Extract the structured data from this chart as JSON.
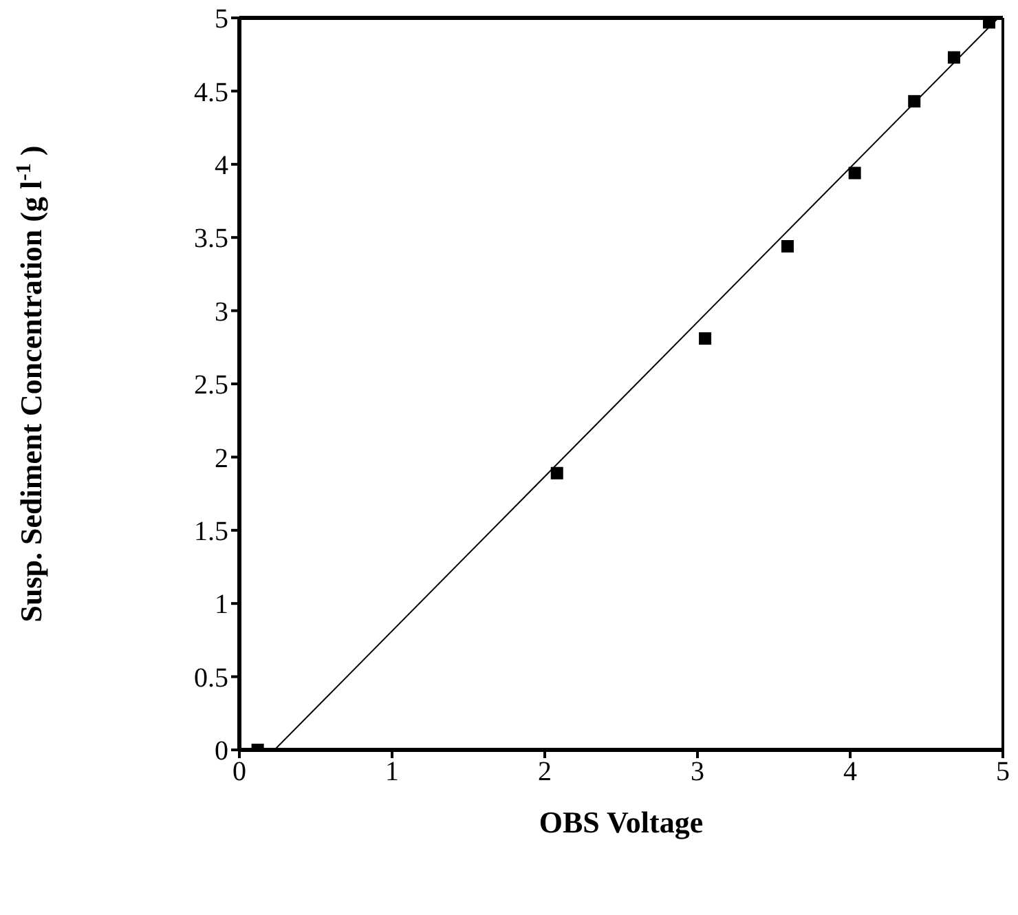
{
  "chart_data": {
    "type": "scatter",
    "xlabel": "OBS Voltage",
    "ylabel": "Susp. Sediment Concentration (g l$^{-1}$)",
    "series": [
      {
        "color": "#000000",
        "marker": "square",
        "x": [
          0.12,
          2.08,
          3.05,
          3.59,
          4.03,
          4.42,
          4.68,
          4.91
        ],
        "values": [
          0,
          1.89,
          2.81,
          3.44,
          3.94,
          4.43,
          4.73,
          4.97
        ]
      },
      {
        "type": "line",
        "color": "#000000",
        "marker": "none",
        "line_style": "solid",
        "x": [
          0.23,
          4.97
        ],
        "values": [
          0,
          5
        ]
      }
    ],
    "xlim": [
      0,
      5
    ],
    "xticks": [
      0,
      1,
      2,
      3,
      4,
      5
    ],
    "ylim": [
      0,
      5
    ],
    "yticks": [
      0,
      0.5,
      1,
      1.5,
      2,
      2.5,
      3,
      3.5,
      4,
      4.5,
      5
    ],
    "grid": false,
    "legend": false
  }
}
